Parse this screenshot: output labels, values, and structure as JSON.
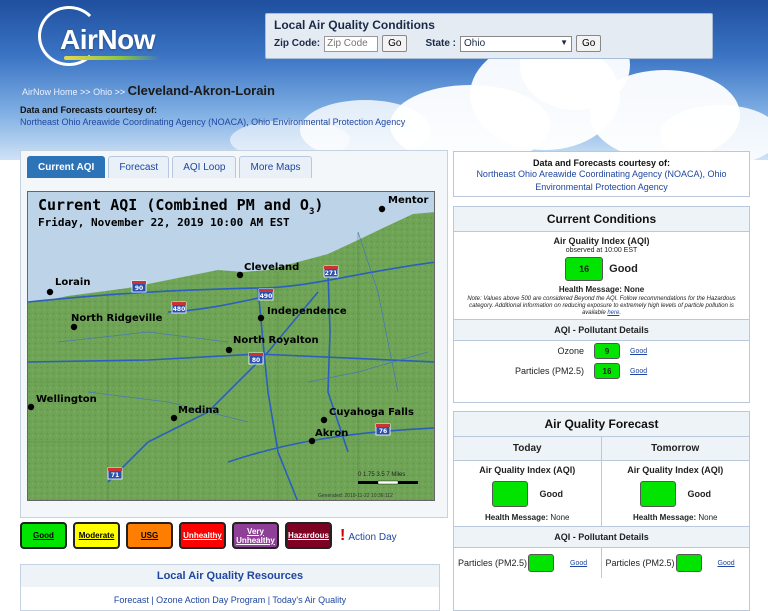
{
  "header": {
    "logo_text": "AirNow",
    "search": {
      "title": "Local Air Quality Conditions",
      "zip_label": "Zip Code:",
      "zip_placeholder": "Zip Code",
      "go_label": "Go",
      "state_label": "State :",
      "state_value": "Ohio",
      "state_go_label": "Go"
    },
    "breadcrumb": {
      "home": "AirNow Home",
      "sep1": ">>",
      "state": "Ohio",
      "sep2": ">>",
      "current": "Cleveland-Akron-Lorain"
    },
    "courtesy_title": "Data and Forecasts courtesy of:",
    "courtesy_links": "Northeast Ohio Areawide Coordinating Agency (NOACA), Ohio Environmental Protection Agency"
  },
  "tabs": [
    {
      "label": "Current AQI",
      "active": true
    },
    {
      "label": "Forecast",
      "active": false
    },
    {
      "label": "AQI Loop",
      "active": false
    },
    {
      "label": "More Maps",
      "active": false
    }
  ],
  "map": {
    "title": "Current AQI (Combined PM and O",
    "title_sub": "3",
    "title_end": ")",
    "subtitle": "Friday, November 22, 2019 10:00 AM EST",
    "scale_text": "0 1.75 3.5    7 Miles",
    "generated_text": "Generated: 2019-11-22 10:36:112",
    "cities": [
      {
        "name": "Mentor"
      },
      {
        "name": "Cleveland"
      },
      {
        "name": "Lorain"
      },
      {
        "name": "North Ridgeville"
      },
      {
        "name": "Independence"
      },
      {
        "name": "North Royalton"
      },
      {
        "name": "Wellington"
      },
      {
        "name": "Medina"
      },
      {
        "name": "Cuyahoga Falls"
      },
      {
        "name": "Akron"
      }
    ],
    "highways": [
      "90",
      "271",
      "490",
      "480",
      "80",
      "76",
      "71"
    ]
  },
  "legend": [
    {
      "label": "Good",
      "color": "#00e400",
      "text_color": "#000000"
    },
    {
      "label": "Moderate",
      "color": "#ffff00",
      "text_color": "#000000"
    },
    {
      "label": "USG",
      "color": "#ff7e00",
      "text_color": "#000000"
    },
    {
      "label": "Unhealthy",
      "color": "#ff0000",
      "text_color": "#ffffff"
    },
    {
      "label": "Very Unhealthy",
      "color": "#8f3f97",
      "text_color": "#ffffff"
    },
    {
      "label": "Hazardous",
      "color": "#7e0023",
      "text_color": "#ffffff"
    }
  ],
  "action_day": "Action Day",
  "resources": {
    "title": "Local Air Quality Resources",
    "links": "Forecast | Ozone Action Day Program | Today's Air Quality"
  },
  "right_courtesy": {
    "title": "Data and Forecasts courtesy of:",
    "links": "Northeast Ohio Areawide Coordinating Agency (NOACA), Ohio Environmental Protection Agency"
  },
  "current_conditions": {
    "title": "Current Conditions",
    "aqi_label": "Air Quality Index (AQI)",
    "observed": "observed at 10:00 EST",
    "aqi_value": "16",
    "aqi_category": "Good",
    "health_message": "Health Message: None",
    "note": "Note: Values above 500 are considered Beyond the AQI. Follow recommendations for the Hazardous category. Additional information on reducing exposure to extremely high levels of particle pollution is available",
    "note_link": "here",
    "pollutant_header": "AQI - Pollutant Details",
    "pollutants": [
      {
        "name": "Ozone",
        "value": "9",
        "category": "Good"
      },
      {
        "name": "Particles (PM2.5)",
        "value": "16",
        "category": "Good"
      }
    ]
  },
  "forecast": {
    "title": "Air Quality Forecast",
    "days": [
      {
        "label": "Today",
        "aqi_label": "Air Quality Index (AQI)",
        "category": "Good",
        "health_label": "Health Message:",
        "health_value": "None",
        "pollutant_name": "Particles (PM2.5)",
        "pollutant_category": "Good"
      },
      {
        "label": "Tomorrow",
        "aqi_label": "Air Quality Index (AQI)",
        "category": "Good",
        "health_label": "Health Message:",
        "health_value": "None",
        "pollutant_name": "Particles (PM2.5)",
        "pollutant_category": "Good"
      }
    ],
    "pollutant_header": "AQI - Pollutant Details"
  }
}
